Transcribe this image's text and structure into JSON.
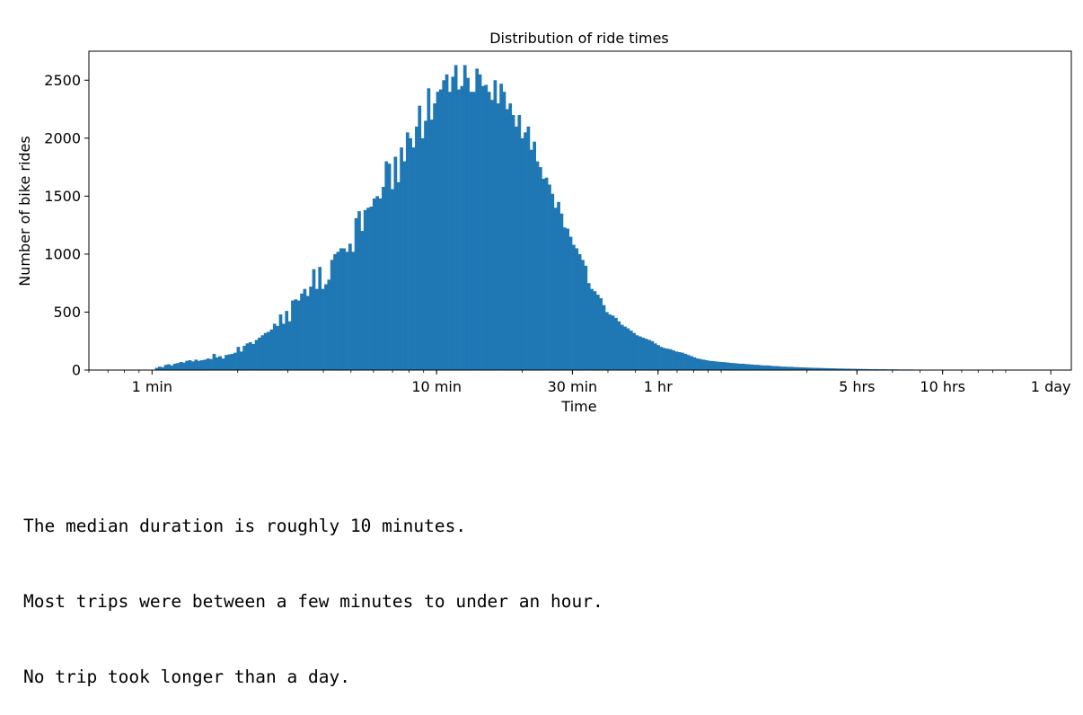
{
  "chart_data": {
    "type": "bar",
    "subtype": "histogram",
    "title": "Distribution of ride times",
    "xlabel": "Time",
    "ylabel": "Number of bike rides",
    "xscale": "log",
    "x_unit": "minutes",
    "x_ticks": [
      {
        "value": 1,
        "label": "1 min"
      },
      {
        "value": 10,
        "label": "10 min"
      },
      {
        "value": 30,
        "label": "30 min"
      },
      {
        "value": 60,
        "label": "1 hr"
      },
      {
        "value": 300,
        "label": "5 hrs"
      },
      {
        "value": 600,
        "label": "10 hrs"
      },
      {
        "value": 1440,
        "label": "1 day"
      }
    ],
    "xlim": [
      0.6,
      1700
    ],
    "ylim": [
      0,
      2750
    ],
    "y_ticks": [
      0,
      500,
      1000,
      1500,
      2000,
      2500
    ],
    "color": "#1f77b4",
    "grid": false,
    "bin_edges_range": [
      1.0,
      1460
    ],
    "counts": [
      0,
      20,
      30,
      25,
      45,
      50,
      40,
      55,
      60,
      70,
      65,
      80,
      85,
      75,
      90,
      80,
      85,
      90,
      100,
      95,
      140,
      110,
      120,
      100,
      130,
      135,
      140,
      150,
      200,
      160,
      210,
      230,
      240,
      225,
      260,
      280,
      300,
      320,
      330,
      350,
      400,
      380,
      480,
      400,
      510,
      420,
      600,
      610,
      600,
      660,
      700,
      640,
      720,
      870,
      700,
      890,
      700,
      740,
      780,
      950,
      1000,
      1020,
      1050,
      1050,
      1020,
      1090,
      1020,
      1310,
      1370,
      1200,
      1380,
      1400,
      1410,
      1480,
      1500,
      1480,
      1580,
      1800,
      1780,
      1560,
      1840,
      1620,
      1920,
      1800,
      2050,
      2000,
      1920,
      2100,
      2280,
      2000,
      2150,
      2430,
      2160,
      2300,
      2400,
      2420,
      2500,
      2550,
      2400,
      2530,
      2630,
      2420,
      2450,
      2630,
      2520,
      2400,
      2400,
      2600,
      2550,
      2450,
      2460,
      2400,
      2330,
      2500,
      2300,
      2470,
      2400,
      2250,
      2300,
      2200,
      2100,
      2200,
      2000,
      2050,
      2100,
      1900,
      1970,
      1800,
      1750,
      1650,
      1660,
      1600,
      1520,
      1400,
      1450,
      1350,
      1230,
      1220,
      1150,
      1080,
      1050,
      1000,
      950,
      900,
      750,
      700,
      680,
      650,
      620,
      560,
      500,
      480,
      470,
      450,
      420,
      390,
      375,
      360,
      340,
      320,
      300,
      290,
      280,
      270,
      260,
      250,
      230,
      215,
      200,
      190,
      185,
      180,
      170,
      160,
      155,
      150,
      140,
      130,
      120,
      110,
      100,
      95,
      90,
      85,
      80,
      78,
      75,
      72,
      70,
      68,
      65,
      62,
      60,
      58,
      55,
      55,
      52,
      50,
      48,
      45,
      45,
      42,
      40,
      40,
      38,
      35,
      35,
      33,
      30,
      30,
      28,
      28,
      26,
      25,
      24,
      23,
      22,
      21,
      20,
      19,
      19,
      18,
      17,
      16,
      15,
      15,
      14,
      13,
      13,
      12,
      12,
      11,
      11,
      10,
      10,
      9,
      9,
      8,
      8,
      8,
      7,
      7,
      7,
      6,
      6,
      6,
      6,
      5,
      5,
      5,
      5,
      5,
      4,
      4,
      4,
      4,
      4,
      4,
      3,
      3,
      3,
      3,
      3,
      3,
      3,
      3,
      2,
      2,
      2,
      2,
      2,
      2,
      2,
      2,
      2,
      2,
      2,
      1,
      1,
      1,
      1,
      1,
      1,
      1,
      1,
      1,
      1,
      1,
      1,
      1,
      1,
      1,
      1,
      1,
      1,
      1,
      1,
      1
    ]
  },
  "notes": {
    "line1": "The median duration is roughly 10 minutes.",
    "line2": "Most trips were between a few minutes to under an hour.",
    "line3": "No trip took longer than a day."
  }
}
